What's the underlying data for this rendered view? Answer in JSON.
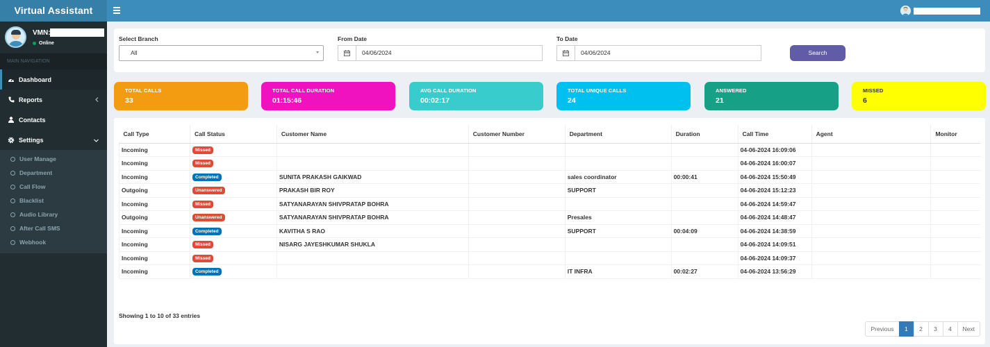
{
  "header": {
    "brand": "Virtual Assistant",
    "menu_icon": "hamburger-icon"
  },
  "user": {
    "vmn_label": "VMN:",
    "status": "Online"
  },
  "sidebar": {
    "section_title": "MAIN NAVIGATION",
    "items": [
      {
        "label": "Dashboard",
        "icon": "dashboard-icon"
      },
      {
        "label": "Reports",
        "icon": "phone-icon"
      },
      {
        "label": "Contacts",
        "icon": "user-icon"
      },
      {
        "label": "Settings",
        "icon": "gear-icon"
      }
    ],
    "settings_subitems": [
      "User Manage",
      "Department",
      "Call Flow",
      "Blacklist",
      "Audio Library",
      "After Call SMS",
      "Webhook"
    ]
  },
  "filters": {
    "branch_label": "Select Branch",
    "branch_value": "All",
    "from_label": "From Date",
    "from_value": "04/06/2024",
    "to_label": "To Date",
    "to_value": "04/06/2024",
    "search_label": "Search"
  },
  "stats": [
    {
      "label": "TOTAL CALLS",
      "value": "33",
      "color": "#f39c12"
    },
    {
      "label": "TOTAL CALL DURATION",
      "value": "01:15:46",
      "color": "#f012be"
    },
    {
      "label": "AVG CALL DURATION",
      "value": "00:02:17",
      "color": "#39cccc"
    },
    {
      "label": "TOTAL UNIQUE CALLS",
      "value": "24",
      "color": "#00c0ef"
    },
    {
      "label": "ANSWERED",
      "value": "21",
      "color": "#16a085"
    },
    {
      "label": "MISSED",
      "value": "6",
      "color": "#ffff00"
    }
  ],
  "table": {
    "columns": [
      "Call Type",
      "Call Status",
      "Customer Name",
      "Customer Number",
      "Department",
      "Duration",
      "Call Time",
      "Agent",
      "Monitor"
    ],
    "rows": [
      {
        "type": "Incoming",
        "status": "Missed",
        "name": "",
        "number": "",
        "department": "",
        "duration": "",
        "time": "04-06-2024 16:09:06",
        "agent": "",
        "monitor": ""
      },
      {
        "type": "Incoming",
        "status": "Missed",
        "name": "",
        "number": "",
        "department": "",
        "duration": "",
        "time": "04-06-2024 16:00:07",
        "agent": "",
        "monitor": ""
      },
      {
        "type": "Incoming",
        "status": "Completed",
        "name": "SUNITA PRAKASH GAIKWAD",
        "number": "",
        "department": "sales coordinator",
        "duration": "00:00:41",
        "time": "04-06-2024 15:50:49",
        "agent": "",
        "monitor": ""
      },
      {
        "type": "Outgoing",
        "status": "Unanswered",
        "name": "PRAKASH BIR ROY",
        "number": "",
        "department": "SUPPORT",
        "duration": "",
        "time": "04-06-2024 15:12:23",
        "agent": "",
        "monitor": ""
      },
      {
        "type": "Incoming",
        "status": "Missed",
        "name": "SATYANARAYAN SHIVPRATAP BOHRA",
        "number": "",
        "department": "",
        "duration": "",
        "time": "04-06-2024 14:59:47",
        "agent": "",
        "monitor": ""
      },
      {
        "type": "Outgoing",
        "status": "Unanswered",
        "name": "SATYANARAYAN SHIVPRATAP BOHRA",
        "number": "",
        "department": "Presales",
        "duration": "",
        "time": "04-06-2024 14:48:47",
        "agent": "",
        "monitor": ""
      },
      {
        "type": "Incoming",
        "status": "Completed",
        "name": "KAVITHA S RAO",
        "number": "",
        "department": "SUPPORT",
        "duration": "00:04:09",
        "time": "04-06-2024 14:38:59",
        "agent": "",
        "monitor": ""
      },
      {
        "type": "Incoming",
        "status": "Missed",
        "name": "NISARG JAYESHKUMAR SHUKLA",
        "number": "",
        "department": "",
        "duration": "",
        "time": "04-06-2024 14:09:51",
        "agent": "",
        "monitor": ""
      },
      {
        "type": "Incoming",
        "status": "Missed",
        "name": "",
        "number": "",
        "department": "",
        "duration": "",
        "time": "04-06-2024 14:09:37",
        "agent": "",
        "monitor": ""
      },
      {
        "type": "Incoming",
        "status": "Completed",
        "name": "",
        "number": "",
        "department": "IT INFRA",
        "duration": "00:02:27",
        "time": "04-06-2024 13:56:29",
        "agent": "",
        "monitor": ""
      }
    ]
  },
  "pagination": {
    "info": "Showing 1 to 10 of 33 entries",
    "previous": "Previous",
    "pages": [
      "1",
      "2",
      "3",
      "4"
    ],
    "current": "1",
    "next": "Next"
  }
}
